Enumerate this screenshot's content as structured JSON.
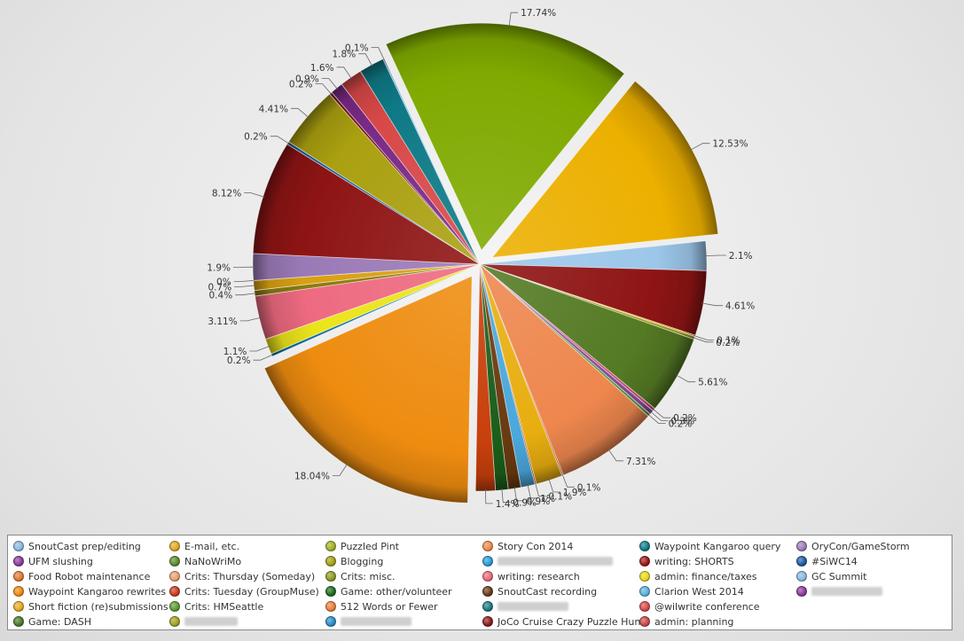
{
  "chart_data": {
    "type": "pie",
    "slices": [
      {
        "label": "2.1%",
        "value": 2.1,
        "color": "#9cc7ea"
      },
      {
        "label": "4.61%",
        "value": 4.61,
        "color": "#8e1414"
      },
      {
        "label": "0.1%",
        "value": 0.1,
        "color": "#e0b020"
      },
      {
        "label": "0.2%",
        "value": 0.2,
        "color": "#a0a020"
      },
      {
        "label": "5.61%",
        "value": 5.61,
        "color": "#547a24"
      },
      {
        "label": "0.2%",
        "value": 0.2,
        "color": "#c8507a"
      },
      {
        "label": "0.3%",
        "value": 0.3,
        "color": "#8a4a9a"
      },
      {
        "label": "0.2%",
        "value": 0.2,
        "color": "#5a9a40"
      },
      {
        "label": "7.31%",
        "value": 7.31,
        "color": "#ee874e"
      },
      {
        "label": "0.1%",
        "value": 0.1,
        "color": "#c86020"
      },
      {
        "label": "1.9%",
        "value": 1.9,
        "color": "#e8ae10"
      },
      {
        "label": "0.1%",
        "value": 0.1,
        "color": "#c05010"
      },
      {
        "label": "1%",
        "value": 1.0,
        "color": "#4aa8dc"
      },
      {
        "label": "0.9%",
        "value": 0.9,
        "color": "#6a3a10"
      },
      {
        "label": "0.9%",
        "value": 0.9,
        "color": "#1a5e1a"
      },
      {
        "label": "1.4%",
        "value": 1.4,
        "color": "#c8400c"
      },
      {
        "label": "18.04%",
        "value": 18.04,
        "color": "#ee8c10"
      },
      {
        "label": "0.2%",
        "value": 0.2,
        "color": "#0a6aa0"
      },
      {
        "label": "1.1%",
        "value": 1.1,
        "color": "#ece41a"
      },
      {
        "label": "3.11%",
        "value": 3.11,
        "color": "#ee6a80"
      },
      {
        "label": "0.4%",
        "value": 0.4,
        "color": "#8a7a10"
      },
      {
        "label": "0.7%",
        "value": 0.7,
        "color": "#d8a010"
      },
      {
        "label": "0%",
        "value": 0.0,
        "color": "#f0a878"
      },
      {
        "label": "1.9%",
        "value": 1.9,
        "color": "#9a7ab6"
      },
      {
        "label": "8.12%",
        "value": 8.12,
        "color": "#8e1414"
      },
      {
        "label": "0.2%",
        "value": 0.2,
        "color": "#1a60a0"
      },
      {
        "label": "4.41%",
        "value": 4.41,
        "color": "#aaa010"
      },
      {
        "label": "0.2%",
        "value": 0.2,
        "color": "#7a1a1a"
      },
      {
        "label": "0.9%",
        "value": 0.9,
        "color": "#7a2a86"
      },
      {
        "label": "1.6%",
        "value": 1.6,
        "color": "#d84848"
      },
      {
        "label": "1.8%",
        "value": 1.8,
        "color": "#0e7a86"
      },
      {
        "label": "0.1%",
        "value": 0.1,
        "color": "#7ab0e0"
      },
      {
        "label": "17.74%",
        "value": 17.74,
        "color": "#80aa00"
      },
      {
        "label": "12.53%",
        "value": 12.53,
        "color": "#ecb000"
      }
    ],
    "legend_position": "bottom",
    "legend": [
      {
        "label": "SnoutCast prep/editing",
        "color": "#8ab8e0"
      },
      {
        "label": "UFM slushing",
        "color": "#8a3a9a"
      },
      {
        "label": "Food Robot maintenance",
        "color": "#e07a30"
      },
      {
        "label": "Waypoint Kangaroo rewrites",
        "color": "#ee8a10"
      },
      {
        "label": "Short fiction (re)submissions",
        "color": "#e8a820"
      },
      {
        "label": "Game: DASH",
        "color": "#4a7a2a"
      },
      {
        "label": "E-mail, etc.",
        "color": "#e0a820"
      },
      {
        "label": "NaNoWriMo",
        "color": "#5a8a2a"
      },
      {
        "label": "Crits: Thursday (Someday)",
        "color": "#e8a070"
      },
      {
        "label": "Crits: Tuesday (GroupMuse)",
        "color": "#c83a1a"
      },
      {
        "label": "Crits: HMSeattle",
        "color": "#5a9a30"
      },
      {
        "label": "",
        "color": "#a0a020"
      },
      {
        "label": "Puzzled Pint",
        "color": "#a0b020"
      },
      {
        "label": "Blogging",
        "color": "#a0a010"
      },
      {
        "label": "Crits: misc.",
        "color": "#8a9a20"
      },
      {
        "label": "Game: other/volunteer",
        "color": "#1a6a1a"
      },
      {
        "label": "512 Words or Fewer",
        "color": "#e8803a"
      },
      {
        "label": "",
        "color": "#2a8ac8"
      },
      {
        "label": "Story Con 2014",
        "color": "#ee8a4a"
      },
      {
        "label": "",
        "color": "#2a9ad8"
      },
      {
        "label": "writing: research",
        "color": "#e86a7a"
      },
      {
        "label": "SnoutCast recording",
        "color": "#6a3a1a"
      },
      {
        "label": "",
        "color": "#1a7a80"
      },
      {
        "label": "JoCo Cruise Crazy Puzzle Hunt",
        "color": "#8a1a1a"
      },
      {
        "label": "Waypoint Kangaroo query",
        "color": "#0e7a86"
      },
      {
        "label": "writing: SHORTS",
        "color": "#9a1414"
      },
      {
        "label": "admin: finance/taxes",
        "color": "#e8d81a"
      },
      {
        "label": "Clarion West 2014",
        "color": "#5ab0e0"
      },
      {
        "label": "@wilwrite conference",
        "color": "#d84848"
      },
      {
        "label": "admin: planning",
        "color": "#c84848"
      },
      {
        "label": "OryCon/GameStorm",
        "color": "#9a7ab6"
      },
      {
        "label": "#SiWC14",
        "color": "#1a5aa0"
      },
      {
        "label": "GC Summit",
        "color": "#8ab8e0"
      },
      {
        "label": "",
        "color": "#8a3a9a"
      }
    ]
  }
}
